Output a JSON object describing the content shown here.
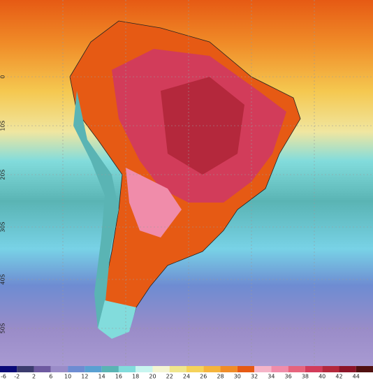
{
  "map": {
    "lat_labels": [
      "0",
      "10S",
      "20S",
      "30S",
      "40S",
      "50S"
    ]
  },
  "legend": {
    "labels": [
      "-6",
      "-2",
      "2",
      "6",
      "10",
      "12",
      "14",
      "16",
      "18",
      "20",
      "22",
      "24",
      "26",
      "28",
      "30",
      "32",
      "34",
      "36",
      "38",
      "40",
      "42",
      "44"
    ],
    "colors": [
      "#0a0a78",
      "#3c3c6e",
      "#6e5aa0",
      "#9a8cc8",
      "#6e8cd2",
      "#5aa0d2",
      "#5ab4b4",
      "#82dcdc",
      "#c8f5f0",
      "#f5f5d2",
      "#f0e68c",
      "#f5d25a",
      "#f5b43c",
      "#f08c28",
      "#e65a14",
      "#f5b4c8",
      "#f08caa",
      "#e6647d",
      "#d23c5a",
      "#b4283c",
      "#8c1428",
      "#501010"
    ]
  }
}
